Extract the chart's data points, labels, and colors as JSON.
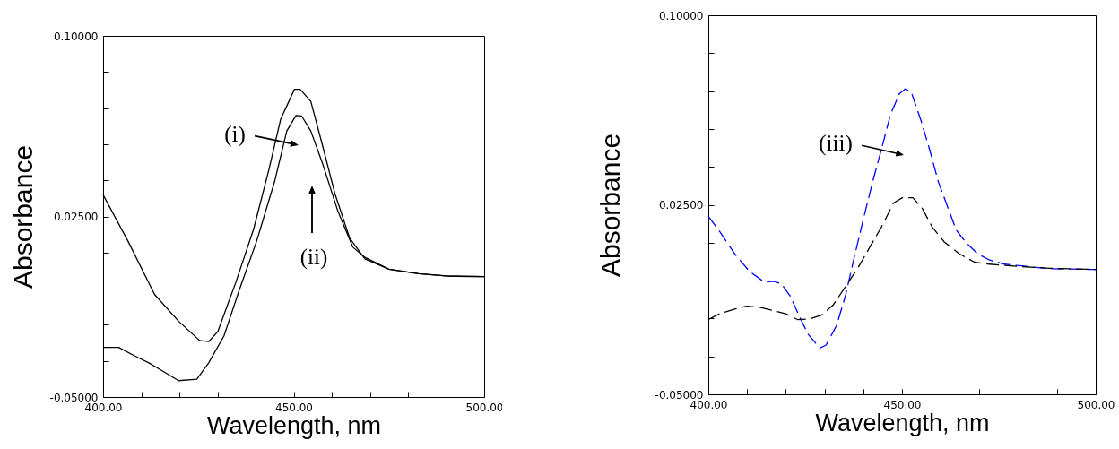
{
  "chart_data": [
    {
      "type": "line",
      "xlabel": "Wavelength, nm",
      "ylabel": "Absorbance",
      "xlim": [
        400,
        500
      ],
      "ylim": [
        -0.05,
        0.1
      ],
      "xticks": [
        {
          "value": 400,
          "label": "400.00"
        },
        {
          "value": 410,
          "label": null
        },
        {
          "value": 420,
          "label": null
        },
        {
          "value": 430,
          "label": null
        },
        {
          "value": 440,
          "label": null
        },
        {
          "value": 450,
          "label": "450.00"
        },
        {
          "value": 460,
          "label": null
        },
        {
          "value": 470,
          "label": null
        },
        {
          "value": 480,
          "label": null
        },
        {
          "value": 490,
          "label": null
        },
        {
          "value": 500,
          "label": "500.00"
        }
      ],
      "yticks": [
        {
          "value": -0.05,
          "label": "-0.05000"
        },
        {
          "value": -0.035,
          "label": null
        },
        {
          "value": -0.02,
          "label": null
        },
        {
          "value": -0.005,
          "label": null
        },
        {
          "value": 0.01,
          "label": null
        },
        {
          "value": 0.025,
          "label": "0.02500"
        },
        {
          "value": 0.04,
          "label": null
        },
        {
          "value": 0.055,
          "label": null
        },
        {
          "value": 0.07,
          "label": null
        },
        {
          "value": 0.085,
          "label": null
        },
        {
          "value": 0.1,
          "label": "0.10000"
        }
      ],
      "series": [
        {
          "color": "#000000",
          "line_style": "solid",
          "x": [
            400,
            406.5,
            413.5,
            419.8,
            425.3,
            427.7,
            430.1,
            434.8,
            439.5,
            443.5,
            446.6,
            450.2,
            451.7,
            454.5,
            457.6,
            460.8,
            464.7,
            468.7,
            475,
            482.8,
            490.7,
            500
          ],
          "values": [
            0.034,
            0.0148,
            -0.0074,
            -0.0185,
            -0.0265,
            -0.027,
            -0.0228,
            -0.0025,
            0.0198,
            0.0444,
            0.0654,
            0.0778,
            0.0778,
            0.0728,
            0.0543,
            0.0346,
            0.016,
            0.0074,
            0.0031,
            0.0012,
            0.0002,
            0
          ]
        },
        {
          "color": "#000000",
          "line_style": "solid",
          "x": [
            400,
            404.1,
            408,
            412,
            415.9,
            419.8,
            424.6,
            427.7,
            431.7,
            435.6,
            440.3,
            445,
            448.2,
            450.6,
            452.1,
            454.5,
            457.6,
            461.6,
            465.5,
            468.7,
            475,
            482.8,
            490.7,
            500
          ],
          "values": [
            -0.0294,
            -0.0294,
            -0.0327,
            -0.0358,
            -0.0395,
            -0.0432,
            -0.0426,
            -0.0358,
            -0.0247,
            -0.0062,
            0.0148,
            0.0395,
            0.0605,
            0.0669,
            0.0667,
            0.0605,
            0.0469,
            0.0272,
            0.0123,
            0.008,
            0.0031,
            0.0012,
            0.0002,
            0
          ]
        }
      ],
      "annotations": [
        "(i)",
        "(ii)"
      ]
    },
    {
      "type": "line",
      "xlabel": "Wavelength, nm",
      "ylabel": "Absorbance",
      "xlim": [
        400,
        500
      ],
      "ylim": [
        -0.05,
        0.1
      ],
      "xticks": [
        {
          "value": 400,
          "label": "400.00"
        },
        {
          "value": 410,
          "label": null
        },
        {
          "value": 420,
          "label": null
        },
        {
          "value": 430,
          "label": null
        },
        {
          "value": 440,
          "label": null
        },
        {
          "value": 450,
          "label": "450.00"
        },
        {
          "value": 460,
          "label": null
        },
        {
          "value": 470,
          "label": null
        },
        {
          "value": 480,
          "label": null
        },
        {
          "value": 490,
          "label": null
        },
        {
          "value": 500,
          "label": "500.00"
        }
      ],
      "yticks": [
        {
          "value": -0.05,
          "label": "-0.05000"
        },
        {
          "value": -0.035,
          "label": null
        },
        {
          "value": -0.02,
          "label": null
        },
        {
          "value": -0.005,
          "label": null
        },
        {
          "value": 0.01,
          "label": null
        },
        {
          "value": 0.025,
          "label": "0.02500"
        },
        {
          "value": 0.04,
          "label": null
        },
        {
          "value": 0.055,
          "label": null
        },
        {
          "value": 0.07,
          "label": null
        },
        {
          "value": 0.085,
          "label": null
        },
        {
          "value": 0.1,
          "label": "0.10000"
        }
      ],
      "series": [
        {
          "color": "#0000ff",
          "line_style": "dashed",
          "x": [
            400,
            402.9,
            406.8,
            410.7,
            414.5,
            416.9,
            418.8,
            421.1,
            423.5,
            425.8,
            428.8,
            430.4,
            433.1,
            435.4,
            437.7,
            440.1,
            442.4,
            444.7,
            447,
            449.3,
            450.9,
            452.4,
            454.8,
            457.1,
            459.4,
            461.7,
            464,
            466.4,
            469.5,
            472.5,
            476.4,
            480.3,
            488,
            500
          ],
          "values": [
            0.0204,
            0.0145,
            0.0056,
            -0.0015,
            -0.0056,
            -0.0053,
            -0.0062,
            -0.011,
            -0.0192,
            -0.0263,
            -0.0317,
            -0.0305,
            -0.0228,
            -0.011,
            0.0044,
            0.0198,
            0.034,
            0.047,
            0.0606,
            0.0689,
            0.0709,
            0.0695,
            0.0588,
            0.047,
            0.034,
            0.0245,
            0.015,
            0.0103,
            0.0056,
            0.0032,
            0.0015,
            0.0009,
            -0.0003,
            -0.0006
          ]
        },
        {
          "color": "#000000",
          "line_style": "dashed",
          "x": [
            400,
            402.9,
            406.8,
            409.9,
            413,
            416.9,
            420,
            423,
            426.1,
            429.2,
            432.3,
            435.4,
            438.5,
            441.6,
            444.7,
            447.8,
            450.1,
            452.8,
            455.1,
            457.8,
            460.9,
            464.8,
            468.7,
            472.5,
            480.3,
            488,
            500
          ],
          "values": [
            -0.0204,
            -0.0181,
            -0.0163,
            -0.0151,
            -0.0155,
            -0.0169,
            -0.0181,
            -0.0204,
            -0.0202,
            -0.0187,
            -0.0145,
            -0.0074,
            -0.0003,
            0.008,
            0.0162,
            0.0257,
            0.0278,
            0.0278,
            0.0239,
            0.0162,
            0.0103,
            0.0056,
            0.0023,
            0.0015,
            0.0006,
            -0.0001,
            -0.0006
          ]
        }
      ],
      "annotations": [
        "(iii)"
      ]
    }
  ]
}
